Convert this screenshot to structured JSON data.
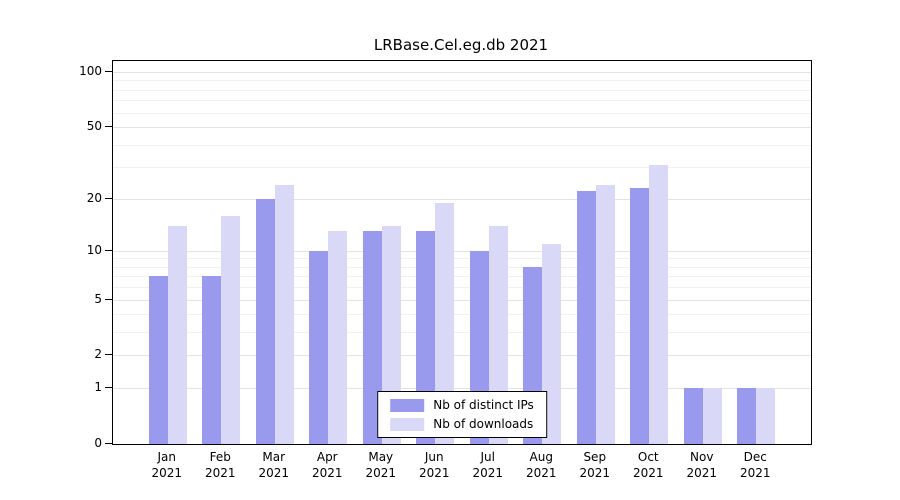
{
  "chart_data": {
    "type": "bar",
    "title": "LRBase.Cel.eg.db 2021",
    "categories": [
      "Jan",
      "Feb",
      "Mar",
      "Apr",
      "May",
      "Jun",
      "Jul",
      "Aug",
      "Sep",
      "Oct",
      "Nov",
      "Dec"
    ],
    "year": "2021",
    "series": [
      {
        "name": "Nb of distinct IPs",
        "color": "#9999ee",
        "values": [
          7,
          7,
          20,
          10,
          13,
          13,
          10,
          8,
          22,
          23,
          1,
          1
        ]
      },
      {
        "name": "Nb of downloads",
        "color": "#d9d9f7",
        "values": [
          14,
          16,
          24,
          13,
          14,
          19,
          14,
          11,
          24,
          31,
          1,
          1
        ]
      }
    ],
    "yticks": [
      0,
      1,
      2,
      5,
      10,
      20,
      50,
      100
    ],
    "minor_yticks": [
      3,
      4,
      6,
      7,
      8,
      9,
      30,
      40,
      60,
      70,
      80,
      90
    ],
    "scale": "log1p",
    "ylim": [
      0,
      100
    ],
    "xlabel": "",
    "ylabel": "",
    "grid": true,
    "legend_position": "bottom-center"
  }
}
